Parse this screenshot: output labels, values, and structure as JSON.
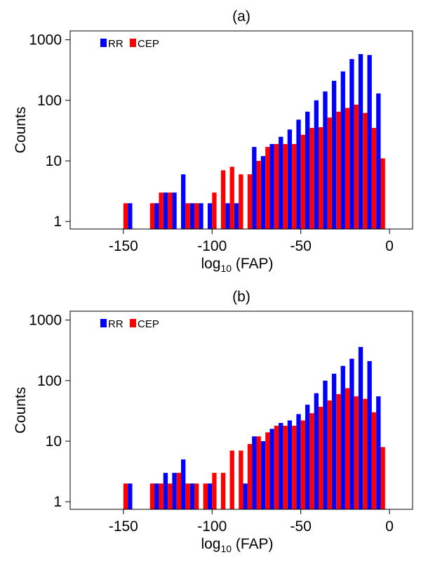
{
  "chart_data": [
    {
      "type": "bar",
      "title": "(a)",
      "xlabel_main": "log",
      "xlabel_sub": "10",
      "xlabel_rest": " (FAP)",
      "ylabel": "Counts",
      "y_scale": "log",
      "xlim": [
        -180,
        13
      ],
      "ylim": [
        0.75,
        1400
      ],
      "x_ticks": [
        -150,
        -100,
        -50,
        0
      ],
      "x_tick_labels": [
        "-150",
        "-100",
        "-50",
        "0"
      ],
      "y_ticks": [
        1,
        10,
        100,
        1000
      ],
      "y_tick_labels": [
        "1",
        "10",
        "100",
        "1000"
      ],
      "legend_position": "top-left",
      "bin_width": 5,
      "x": [
        -145,
        -130,
        -125,
        -120,
        -115,
        -110,
        -105,
        -100,
        -95,
        -90,
        -85,
        -80,
        -75,
        -70,
        -65,
        -60,
        -55,
        -50,
        -45,
        -40,
        -35,
        -30,
        -25,
        -20,
        -15,
        -10,
        -5,
        0
      ],
      "series": [
        {
          "name": "RR",
          "color": "#0000ff",
          "values": [
            2,
            2,
            3,
            3,
            6,
            2,
            2,
            2,
            0,
            2,
            2,
            0,
            17,
            12,
            19,
            25,
            33,
            48,
            65,
            100,
            140,
            210,
            300,
            480,
            580,
            560,
            130,
            0
          ]
        },
        {
          "name": "CEP",
          "color": "#ff0000",
          "values": [
            2,
            2,
            3,
            3,
            0,
            2,
            2,
            0,
            3,
            7,
            8,
            6,
            6,
            10,
            17,
            19,
            19,
            19,
            27,
            35,
            36,
            52,
            65,
            75,
            85,
            62,
            35,
            11
          ]
        }
      ]
    },
    {
      "type": "bar",
      "title": "(b)",
      "xlabel_main": "log",
      "xlabel_sub": "10",
      "xlabel_rest": " (FAP)",
      "ylabel": "Counts",
      "y_scale": "log",
      "xlim": [
        -180,
        13
      ],
      "ylim": [
        0.75,
        1400
      ],
      "x_ticks": [
        -150,
        -100,
        -50,
        0
      ],
      "x_tick_labels": [
        "-150",
        "-100",
        "-50",
        "0"
      ],
      "y_ticks": [
        1,
        10,
        100,
        1000
      ],
      "y_tick_labels": [
        "1",
        "10",
        "100",
        "1000"
      ],
      "legend_position": "top-left",
      "bin_width": 5,
      "x": [
        -145,
        -130,
        -125,
        -120,
        -115,
        -110,
        -105,
        -100,
        -95,
        -90,
        -85,
        -80,
        -75,
        -70,
        -65,
        -60,
        -55,
        -50,
        -45,
        -40,
        -35,
        -30,
        -25,
        -20,
        -15,
        -10,
        -5,
        0
      ],
      "series": [
        {
          "name": "RR",
          "color": "#0000ff",
          "values": [
            2,
            2,
            3,
            3,
            5,
            2,
            0,
            2,
            0,
            0,
            0,
            2,
            12,
            10,
            16,
            20,
            22,
            28,
            40,
            62,
            100,
            130,
            175,
            230,
            360,
            210,
            55,
            0
          ]
        },
        {
          "name": "CEP",
          "color": "#ff0000",
          "values": [
            2,
            2,
            2,
            2,
            3,
            2,
            2,
            2,
            3,
            3,
            7,
            7,
            9,
            12,
            14,
            18,
            18,
            18,
            22,
            29,
            37,
            47,
            60,
            75,
            55,
            50,
            30,
            8
          ]
        }
      ]
    }
  ]
}
